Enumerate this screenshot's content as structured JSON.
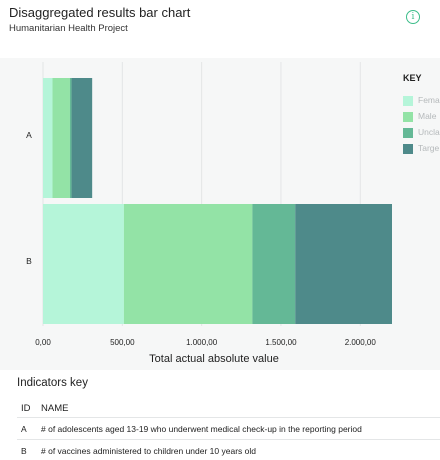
{
  "header": {
    "title": "Disaggregated results bar chart",
    "subtitle": "Humanitarian Health Project",
    "info_icon": "info-icon",
    "info_glyph": "i"
  },
  "legend": {
    "title": "KEY",
    "items": [
      {
        "label": "Fema",
        "color": "#b5f5d9"
      },
      {
        "label": "Male",
        "color": "#93e3a6"
      },
      {
        "label": "Uncla",
        "color": "#64b896"
      },
      {
        "label": "Targe",
        "color": "#4e8a8a"
      }
    ]
  },
  "chart_data": {
    "type": "bar",
    "orientation": "horizontal",
    "stacked": true,
    "categories": [
      "A",
      "B"
    ],
    "series": [
      {
        "name": "Fema",
        "color": "#b5f5d9",
        "values": [
          60,
          510
        ]
      },
      {
        "name": "Male",
        "color": "#93e3a6",
        "values": [
          110,
          810
        ]
      },
      {
        "name": "Uncla",
        "color": "#64b896",
        "values": [
          10,
          270
        ]
      },
      {
        "name": "Targe",
        "color": "#4e8a8a",
        "values": [
          130,
          610
        ]
      }
    ],
    "xlabel": "Total actual absolute value",
    "ylabel": "",
    "xlim": [
      0,
      2200
    ],
    "xticks": [
      0,
      500,
      1000,
      1500,
      2000
    ],
    "xtick_labels": [
      "0,00",
      "500,00",
      "1.000,00",
      "1.500,00",
      "2.000,00"
    ],
    "grid": true,
    "legend_position": "right"
  },
  "indicators": {
    "title": "Indicators key",
    "columns": [
      "ID",
      "NAME"
    ],
    "rows": [
      {
        "id": "A",
        "name": "# of adolescents aged 13-19 who underwent medical check-up in the reporting period"
      },
      {
        "id": "B",
        "name": "# of vaccines administered to children under 10 years old"
      }
    ]
  }
}
